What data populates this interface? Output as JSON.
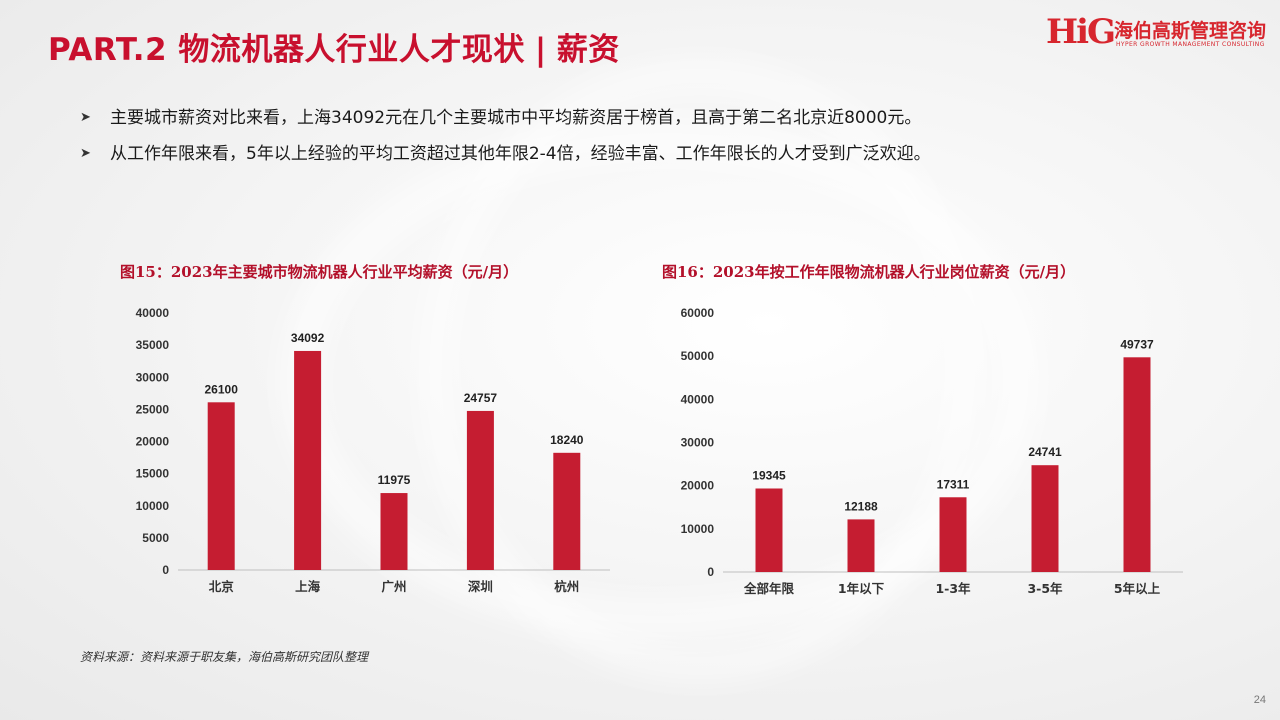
{
  "header": {
    "title_main": "PART.2 物流机器人行业人才现状",
    "title_sep": "|",
    "title_sub": "薪资"
  },
  "logo": {
    "mark": "HiG",
    "cn": "海伯高斯管理咨询",
    "en": "HYPER GROWTH MANAGEMENT CONSULTING"
  },
  "bullets": [
    "主要城市薪资对比来看，上海34092元在几个主要城市中平均薪资居于榜首，且高于第二名北京近8000元。",
    "从工作年限来看，5年以上经验的平均工资超过其他年限2-4倍，经验丰富、工作年限长的人才受到广泛欢迎。"
  ],
  "bullet_icon": "arrow-right-icon",
  "colors": {
    "accent": "#c8102e",
    "bar": "#c51d31"
  },
  "chart_data": [
    {
      "type": "bar",
      "title": "图15：2023年主要城市物流机器人行业平均薪资（元/月）",
      "categories": [
        "北京",
        "上海",
        "广州",
        "深圳",
        "杭州"
      ],
      "values": [
        26100,
        34092,
        11975,
        24757,
        18240
      ],
      "yticks": [
        "0",
        "5000",
        "10000",
        "15000",
        "20000",
        "25000",
        "30000",
        "35000",
        "40000"
      ],
      "ylim": [
        0,
        40000
      ],
      "grid": false
    },
    {
      "type": "bar",
      "title": "图16：2023年按工作年限物流机器人行业岗位薪资（元/月）",
      "categories": [
        "全部年限",
        "1年以下",
        "1-3年",
        "3-5年",
        "5年以上"
      ],
      "values": [
        19345,
        12188,
        17311,
        24741,
        49737
      ],
      "yticks": [
        "0",
        "10000",
        "20000",
        "30000",
        "40000",
        "50000",
        "60000"
      ],
      "ylim": [
        0,
        60000
      ],
      "grid": false
    }
  ],
  "source": "资料来源：资料来源于职友集，海伯高斯研究团队整理",
  "page_number": "24"
}
